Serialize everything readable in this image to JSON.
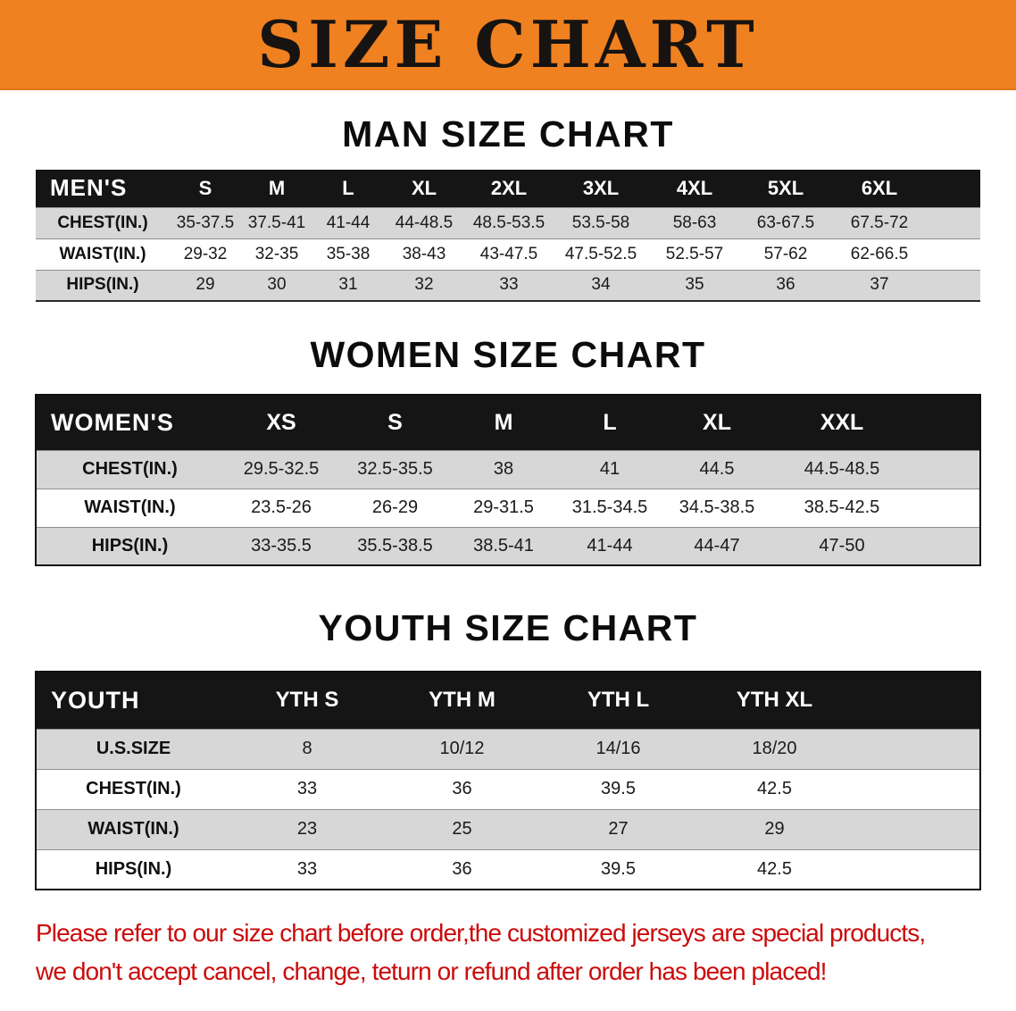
{
  "theme": {
    "banner_bg": "#F08121",
    "banner_text": "#171310",
    "header_bg": "#151515",
    "header_text": "#FFFFFF",
    "stripe_gray": "#D7D7D7",
    "row_white": "#FFFFFF",
    "heading_color": "#0C0C0C",
    "footer_red": "#CB0B0B"
  },
  "banner": {
    "title": "SIZE CHART"
  },
  "sections": {
    "men": {
      "heading": "MAN SIZE CHART",
      "table": {
        "header": [
          "MEN'S",
          "S",
          "M",
          "L",
          "XL",
          "2XL",
          "3XL",
          "4XL",
          "5XL",
          "6XL"
        ],
        "rows": [
          [
            "CHEST(IN.)",
            "35-37.5",
            "37.5-41",
            "41-44",
            "44-48.5",
            "48.5-53.5",
            "53.5-58",
            "58-63",
            "63-67.5",
            "67.5-72"
          ],
          [
            "WAIST(IN.)",
            "29-32",
            "32-35",
            "35-38",
            "38-43",
            "43-47.5",
            "47.5-52.5",
            "52.5-57",
            "57-62",
            "62-66.5"
          ],
          [
            "HIPS(IN.)",
            "29",
            "30",
            "31",
            "32",
            "33",
            "34",
            "35",
            "36",
            "37"
          ]
        ]
      }
    },
    "women": {
      "heading": "WOMEN SIZE CHART",
      "table": {
        "header": [
          "WOMEN'S",
          "XS",
          "S",
          "M",
          "L",
          "XL",
          "XXL"
        ],
        "rows": [
          [
            "CHEST(IN.)",
            "29.5-32.5",
            "32.5-35.5",
            "38",
            "41",
            "44.5",
            "44.5-48.5"
          ],
          [
            "WAIST(IN.)",
            "23.5-26",
            "26-29",
            "29-31.5",
            "31.5-34.5",
            "34.5-38.5",
            "38.5-42.5"
          ],
          [
            "HIPS(IN.)",
            "33-35.5",
            "35.5-38.5",
            "38.5-41",
            "41-44",
            "44-47",
            "47-50"
          ]
        ]
      }
    },
    "youth": {
      "heading": "YOUTH SIZE CHART",
      "table": {
        "header": [
          "YOUTH",
          "YTH S",
          "YTH M",
          "YTH L",
          "YTH XL"
        ],
        "rows": [
          [
            "U.S.SIZE",
            "8",
            "10/12",
            "14/16",
            "18/20"
          ],
          [
            "CHEST(IN.)",
            "33",
            "36",
            "39.5",
            "42.5"
          ],
          [
            "WAIST(IN.)",
            "23",
            "25",
            "27",
            "29"
          ],
          [
            "HIPS(IN.)",
            "33",
            "36",
            "39.5",
            "42.5"
          ]
        ]
      }
    }
  },
  "footer": {
    "line1": "Please refer to our size chart before order,the customized jerseys are special products,",
    "line2": "we don't accept cancel, change, teturn or refund after order has been placed!"
  }
}
